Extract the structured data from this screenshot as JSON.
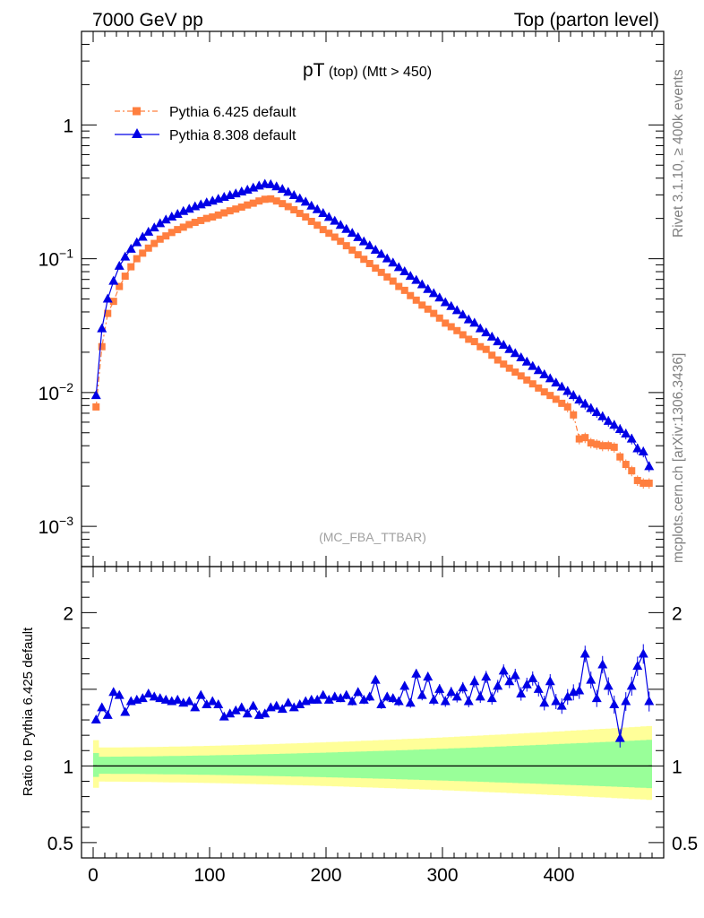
{
  "header": {
    "left": "7000 GeV pp",
    "right": "Top (parton level)"
  },
  "side_labels": {
    "rivet": "Rivet 3.1.10, ≥ 400k events",
    "mcplots": "mcplots.cern.ch [arXiv:1306.3436]"
  },
  "chart_data": [
    {
      "type": "line",
      "title_main": "pT",
      "title_sub": " (top) (Mtt > 450)",
      "watermark": "(MC_FBA_TTBAR)",
      "xlim": [
        -10,
        490
      ],
      "ylog": true,
      "ylim": [
        0.0005,
        5
      ],
      "y_ticks": [
        {
          "value": 1,
          "base": "1",
          "exp": ""
        },
        {
          "value": 0.1,
          "base": "10",
          "exp": "−1"
        },
        {
          "value": 0.01,
          "base": "10",
          "exp": "−2"
        },
        {
          "value": 0.001,
          "base": "10",
          "exp": "−3"
        }
      ],
      "x": [
        2.5,
        7.5,
        12.5,
        17.5,
        22.5,
        27.5,
        32.5,
        37.5,
        42.5,
        47.5,
        52.5,
        57.5,
        62.5,
        67.5,
        72.5,
        77.5,
        82.5,
        87.5,
        92.5,
        97.5,
        102.5,
        107.5,
        112.5,
        117.5,
        122.5,
        127.5,
        132.5,
        137.5,
        142.5,
        147.5,
        152.5,
        157.5,
        162.5,
        167.5,
        172.5,
        177.5,
        182.5,
        187.5,
        192.5,
        197.5,
        202.5,
        207.5,
        212.5,
        217.5,
        222.5,
        227.5,
        232.5,
        237.5,
        242.5,
        247.5,
        252.5,
        257.5,
        262.5,
        267.5,
        272.5,
        277.5,
        282.5,
        287.5,
        292.5,
        297.5,
        302.5,
        307.5,
        312.5,
        317.5,
        322.5,
        327.5,
        332.5,
        337.5,
        342.5,
        347.5,
        352.5,
        357.5,
        362.5,
        367.5,
        372.5,
        377.5,
        382.5,
        387.5,
        392.5,
        397.5,
        402.5,
        407.5,
        412.5,
        417.5,
        422.5,
        427.5,
        432.5,
        437.5,
        442.5,
        447.5,
        452.5,
        457.5,
        462.5,
        467.5,
        472.5,
        477.5
      ],
      "series": [
        {
          "name": "Pythia 6.425 default",
          "color": "#ff7f3f",
          "marker": "square",
          "values": [
            0.0078,
            0.022,
            0.039,
            0.048,
            0.062,
            0.074,
            0.087,
            0.1,
            0.11,
            0.12,
            0.13,
            0.14,
            0.148,
            0.157,
            0.165,
            0.172,
            0.18,
            0.187,
            0.193,
            0.2,
            0.205,
            0.212,
            0.22,
            0.228,
            0.235,
            0.243,
            0.252,
            0.26,
            0.27,
            0.278,
            0.28,
            0.27,
            0.258,
            0.245,
            0.232,
            0.218,
            0.205,
            0.19,
            0.178,
            0.165,
            0.155,
            0.145,
            0.135,
            0.125,
            0.116,
            0.107,
            0.099,
            0.092,
            0.085,
            0.079,
            0.073,
            0.068,
            0.062,
            0.058,
            0.053,
            0.049,
            0.045,
            0.042,
            0.039,
            0.036,
            0.033,
            0.031,
            0.029,
            0.027,
            0.025,
            0.024,
            0.022,
            0.021,
            0.019,
            0.0175,
            0.0163,
            0.0152,
            0.0142,
            0.0133,
            0.0124,
            0.0116,
            0.0108,
            0.0101,
            0.0095,
            0.0089,
            0.0083,
            0.0078,
            0.0068,
            0.0045,
            0.0046,
            0.0042,
            0.0041,
            0.004,
            0.004,
            0.0039,
            0.0033,
            0.0029,
            0.0026,
            0.0022,
            0.0021,
            0.0021
          ]
        },
        {
          "name": "Pythia 8.308 default",
          "color": "#0000e6",
          "marker": "triangle",
          "values": [
            0.0095,
            0.03,
            0.05,
            0.068,
            0.088,
            0.103,
            0.118,
            0.132,
            0.145,
            0.158,
            0.17,
            0.183,
            0.195,
            0.205,
            0.215,
            0.226,
            0.235,
            0.245,
            0.253,
            0.262,
            0.27,
            0.279,
            0.288,
            0.297,
            0.306,
            0.316,
            0.326,
            0.338,
            0.35,
            0.36,
            0.358,
            0.345,
            0.33,
            0.314,
            0.297,
            0.281,
            0.265,
            0.248,
            0.233,
            0.218,
            0.204,
            0.191,
            0.178,
            0.166,
            0.155,
            0.144,
            0.134,
            0.125,
            0.116,
            0.108,
            0.1,
            0.093,
            0.086,
            0.08,
            0.074,
            0.069,
            0.064,
            0.059,
            0.055,
            0.051,
            0.047,
            0.044,
            0.041,
            0.038,
            0.035,
            0.033,
            0.03,
            0.028,
            0.026,
            0.024,
            0.0226,
            0.021,
            0.0196,
            0.0182,
            0.0169,
            0.0157,
            0.0146,
            0.0136,
            0.0127,
            0.0118,
            0.011,
            0.0102,
            0.0095,
            0.0088,
            0.0082,
            0.0076,
            0.0071,
            0.0066,
            0.0061,
            0.0057,
            0.0053,
            0.0049,
            0.0045,
            0.0038,
            0.0036,
            0.0028
          ]
        }
      ]
    },
    {
      "type": "line",
      "ylabel": "Ratio to Pythia 6.425 default",
      "xlim": [
        -10,
        490
      ],
      "ylim": [
        0.4,
        2.3
      ],
      "y_ticks": [
        0.5,
        1,
        2
      ],
      "x_ticks": [
        0,
        100,
        200,
        300,
        400
      ],
      "band_inner_halfwidth_start": 0.06,
      "band_inner_halfwidth_end": 0.17,
      "band_outer_halfwidth_start": 0.12,
      "band_outer_halfwidth_end": 0.26,
      "series": [
        {
          "name": "Pythia 8.308 default",
          "color": "#0000e6",
          "values": [
            1.3,
            1.38,
            1.33,
            1.48,
            1.46,
            1.35,
            1.42,
            1.43,
            1.44,
            1.47,
            1.45,
            1.44,
            1.43,
            1.42,
            1.43,
            1.41,
            1.42,
            1.38,
            1.46,
            1.4,
            1.42,
            1.4,
            1.32,
            1.34,
            1.36,
            1.38,
            1.34,
            1.39,
            1.33,
            1.34,
            1.38,
            1.39,
            1.37,
            1.41,
            1.38,
            1.4,
            1.42,
            1.43,
            1.43,
            1.46,
            1.43,
            1.45,
            1.44,
            1.46,
            1.42,
            1.48,
            1.43,
            1.45,
            1.56,
            1.4,
            1.45,
            1.44,
            1.42,
            1.52,
            1.41,
            1.6,
            1.46,
            1.58,
            1.43,
            1.5,
            1.42,
            1.48,
            1.45,
            1.51,
            1.42,
            1.55,
            1.45,
            1.58,
            1.44,
            1.52,
            1.62,
            1.55,
            1.59,
            1.47,
            1.53,
            1.57,
            1.5,
            1.41,
            1.55,
            1.42,
            1.39,
            1.45,
            1.48,
            1.49,
            1.73,
            1.56,
            1.44,
            1.66,
            1.52,
            1.4,
            1.18,
            1.42,
            1.52,
            1.65,
            1.73,
            1.42
          ]
        }
      ]
    }
  ]
}
